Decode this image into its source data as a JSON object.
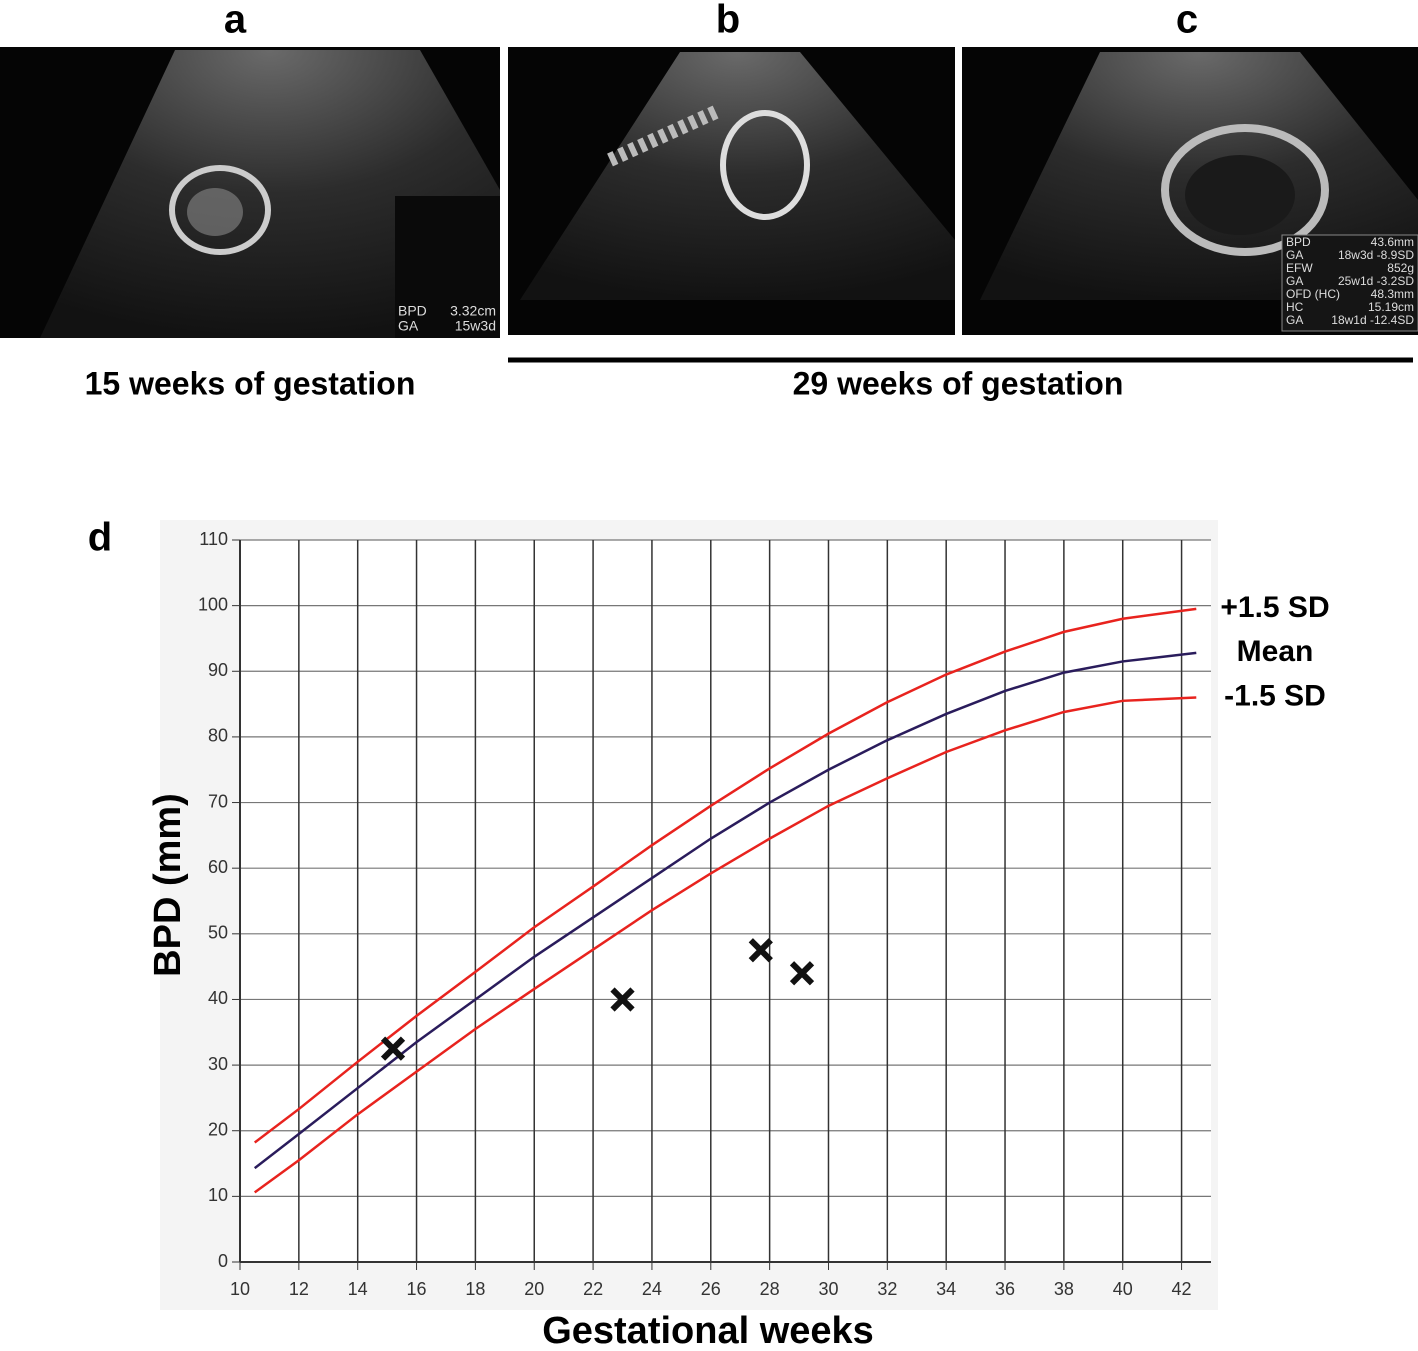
{
  "panels": [
    {
      "label": "a",
      "overlay": [
        [
          "BPD",
          "3.32cm"
        ],
        [
          "GA",
          "15w3d"
        ]
      ]
    },
    {
      "label": "b"
    },
    {
      "label": "c",
      "overlay": [
        [
          "BPD",
          "43.6mm"
        ],
        [
          "GA",
          "18w3d -8.9SD"
        ],
        [
          "EFW",
          "852g"
        ],
        [
          "GA",
          "25w1d -3.2SD"
        ],
        [
          "OFD (HC)",
          "48.3mm"
        ],
        [
          "HC",
          "15.19cm"
        ],
        [
          "GA",
          "18w1d -12.4SD"
        ]
      ]
    }
  ],
  "captions": [
    "15 weeks of gestation",
    "29 weeks of gestation"
  ],
  "chart_data": {
    "type": "line",
    "panel_label": "d",
    "x_label": "Gestational weeks",
    "y_label": "BPD (mm)",
    "xlim": [
      10,
      43
    ],
    "ylim": [
      0,
      110
    ],
    "xticks": [
      10,
      12,
      14,
      16,
      18,
      20,
      22,
      24,
      26,
      28,
      30,
      32,
      34,
      36,
      38,
      40,
      42
    ],
    "yticks": [
      0,
      10,
      20,
      30,
      40,
      50,
      60,
      70,
      80,
      90,
      100,
      110
    ],
    "grid": true,
    "series": [
      {
        "name": "+1.5 SD",
        "color": "#e8231e",
        "x": [
          10.5,
          12,
          14,
          16,
          18,
          20,
          22,
          24,
          26,
          28,
          30,
          32,
          34,
          36,
          38,
          40,
          42.5
        ],
        "values": [
          18.2,
          23.3,
          30.5,
          37.5,
          44.2,
          51,
          57.2,
          63.5,
          69.5,
          75.2,
          80.5,
          85.3,
          89.5,
          93,
          96,
          98,
          99.5
        ]
      },
      {
        "name": "Mean",
        "color": "#2a1c5c",
        "x": [
          10.5,
          12,
          14,
          16,
          18,
          20,
          22,
          24,
          26,
          28,
          30,
          32,
          34,
          36,
          38,
          40,
          42.5
        ],
        "values": [
          14.3,
          19.5,
          26.5,
          33.5,
          40,
          46.5,
          52.5,
          58.5,
          64.5,
          70,
          75,
          79.5,
          83.5,
          87,
          89.8,
          91.5,
          92.8
        ]
      },
      {
        "name": "-1.5 SD",
        "color": "#e8231e",
        "x": [
          10.5,
          12,
          14,
          16,
          18,
          20,
          22,
          24,
          26,
          28,
          30,
          32,
          34,
          36,
          38,
          40,
          42.5
        ],
        "values": [
          10.6,
          15.5,
          22.5,
          29,
          35.5,
          41.6,
          47.6,
          53.6,
          59.2,
          64.5,
          69.5,
          73.7,
          77.7,
          81,
          83.8,
          85.5,
          86
        ]
      }
    ],
    "points": {
      "marker": "x",
      "color": "#111111",
      "x": [
        15.2,
        23,
        27.7,
        29.1
      ],
      "values": [
        32.5,
        40,
        47.5,
        44
      ]
    }
  }
}
